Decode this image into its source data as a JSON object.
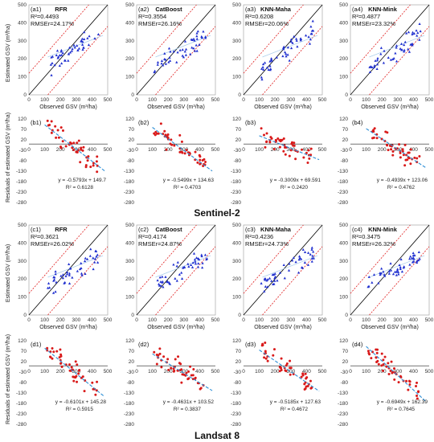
{
  "sections": [
    "Sentinel-2",
    "Landsat 8"
  ],
  "common": {
    "scatter_xlabel": "Observed GSV (m³/ha)",
    "scatter_ylabel": "Estimated GSV (m³/ha)",
    "resid_ylabel": "Residuals of estimated GSV (m³/ha)",
    "scatter_ticks": [
      0,
      100,
      200,
      300,
      400,
      500
    ],
    "resid_yticks": [
      120,
      70,
      20,
      -30,
      -80,
      -130,
      -180,
      -230,
      -280
    ],
    "resid_xticks": [
      0,
      100,
      200,
      300,
      400,
      500
    ]
  },
  "colors": {
    "blue_points": "#1f2fcf",
    "red_points": "#d91a1a",
    "fit_line": "#2f8fd6",
    "limit_lines": "#e02020",
    "one_to_one": "#000000"
  },
  "chart_data": [
    {
      "type": "scatter",
      "panel": "(a1)",
      "title": "RFR",
      "r2": "R²=0.4493",
      "rmse": "RMSEr=24.17%",
      "xlim": [
        0,
        500
      ],
      "ylim": [
        0,
        500
      ]
    },
    {
      "type": "scatter",
      "panel": "(a2)",
      "title": "CatBoost",
      "r2": "R²=0.3554",
      "rmse": "RMSEr=26.16%",
      "xlim": [
        0,
        500
      ],
      "ylim": [
        0,
        500
      ]
    },
    {
      "type": "scatter",
      "panel": "(a3)",
      "title": "KNN-Maha",
      "r2": "R²=0.6208",
      "rmse": "RMSEr=20.06%",
      "xlim": [
        0,
        500
      ],
      "ylim": [
        0,
        500
      ]
    },
    {
      "type": "scatter",
      "panel": "(a4)",
      "title": "KNN-Mink",
      "r2": "R²=0.4877",
      "rmse": "RMSEr=23.32%",
      "xlim": [
        0,
        500
      ],
      "ylim": [
        0,
        500
      ]
    },
    {
      "type": "scatter",
      "panel": "(b1)",
      "equation": "y = -0.5793x + 149.7",
      "r2": "R² = 0.6128",
      "slope": -0.5793,
      "intercept": 149.7,
      "xlim": [
        0,
        500
      ],
      "ylim": [
        -280,
        120
      ]
    },
    {
      "type": "scatter",
      "panel": "(b2)",
      "equation": "y = -0.5499x + 134.63",
      "r2": "R² = 0.4703",
      "slope": -0.5499,
      "intercept": 134.63,
      "xlim": [
        0,
        500
      ],
      "ylim": [
        -280,
        120
      ]
    },
    {
      "type": "scatter",
      "panel": "(b3)",
      "equation": "y = -0.3009x + 69.591",
      "r2": "R² = 0.2420",
      "slope": -0.3009,
      "intercept": 69.591,
      "xlim": [
        0,
        500
      ],
      "ylim": [
        -280,
        120
      ]
    },
    {
      "type": "scatter",
      "panel": "(b4)",
      "equation": "y = -0.4939x + 123.06",
      "r2": "R² = 0.4762",
      "slope": -0.4939,
      "intercept": 123.06,
      "xlim": [
        0,
        500
      ],
      "ylim": [
        -280,
        120
      ]
    },
    {
      "type": "scatter",
      "panel": "(c1)",
      "title": "RFR",
      "r2": "R²=0.3621",
      "rmse": "RMSEr=26.02%",
      "xlim": [
        0,
        500
      ],
      "ylim": [
        0,
        500
      ]
    },
    {
      "type": "scatter",
      "panel": "(c2)",
      "title": "CatBoost",
      "r2": "R²=0.4174",
      "rmse": "RMSEr=24.87%",
      "xlim": [
        0,
        500
      ],
      "ylim": [
        0,
        500
      ]
    },
    {
      "type": "scatter",
      "panel": "(c3)",
      "title": "KNN-Maha",
      "r2": "R²=0.4236",
      "rmse": "RMSEr=24.73%",
      "xlim": [
        0,
        500
      ],
      "ylim": [
        0,
        500
      ]
    },
    {
      "type": "scatter",
      "panel": "(c4)",
      "title": "KNN-Mink",
      "r2": "R²=0.3475",
      "rmse": "RMSEr=26.32%",
      "xlim": [
        0,
        500
      ],
      "ylim": [
        0,
        500
      ]
    },
    {
      "type": "scatter",
      "panel": "(d1)",
      "equation": "y = -0.6101x + 145.28",
      "r2": "R² = 0.5915",
      "slope": -0.6101,
      "intercept": 145.28,
      "xlim": [
        0,
        500
      ],
      "ylim": [
        -280,
        120
      ]
    },
    {
      "type": "scatter",
      "panel": "(d2)",
      "equation": "y = -0.4631x + 103.52",
      "r2": "R² = 0.3837",
      "slope": -0.4631,
      "intercept": 103.52,
      "xlim": [
        0,
        500
      ],
      "ylim": [
        -280,
        120
      ]
    },
    {
      "type": "scatter",
      "panel": "(d3)",
      "equation": "y = -0.5185x + 127.63",
      "r2": "R² = 0.4672",
      "slope": -0.5185,
      "intercept": 127.63,
      "xlim": [
        0,
        500
      ],
      "ylim": [
        -280,
        120
      ]
    },
    {
      "type": "scatter",
      "panel": "(d4)",
      "equation": "y = -0.6949x + 162.39",
      "r2": "R² = 0.7645",
      "slope": -0.6949,
      "intercept": 162.39,
      "xlim": [
        0,
        500
      ],
      "ylim": [
        -280,
        120
      ]
    }
  ]
}
